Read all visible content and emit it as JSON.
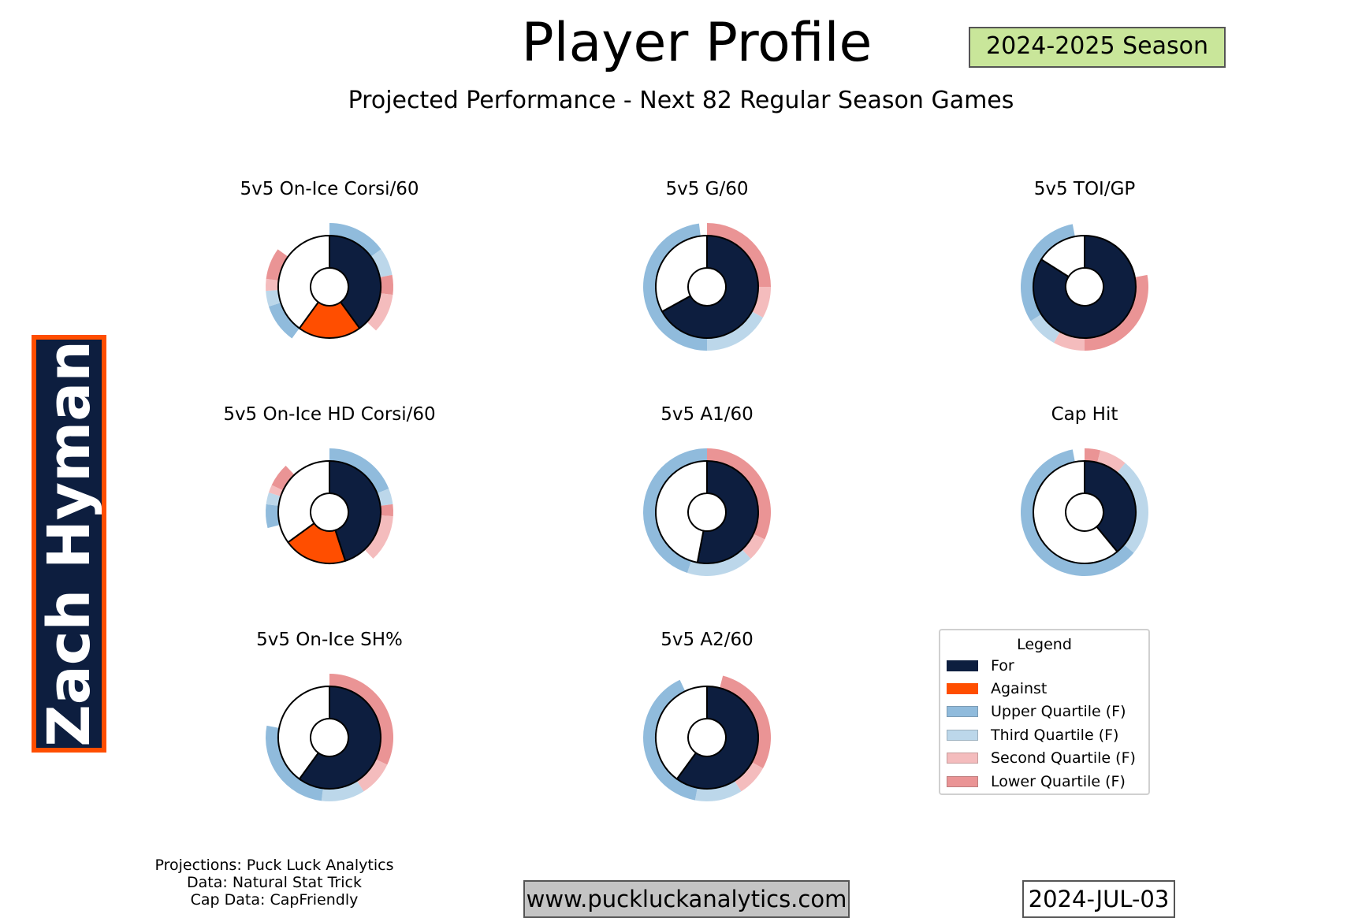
{
  "header": {
    "title": "Player Profile",
    "subtitle": "Projected Performance - Next 82 Regular Season Games",
    "season": "2024-2025 Season"
  },
  "player": {
    "name": "Zach Hyman"
  },
  "colors": {
    "for": "#0d1e3f",
    "against": "#ff4e00",
    "upper_quartile": "#90bbdc",
    "third_quartile": "#bcd7ea",
    "second_quartile": "#f4bcbd",
    "lower_quartile": "#ea9495",
    "remainder": "#ffffff"
  },
  "legend": {
    "title": "Legend",
    "items": [
      {
        "label": "For",
        "color": "#0d1e3f"
      },
      {
        "label": "Against",
        "color": "#ff4e00"
      },
      {
        "label": "Upper Quartile (F)",
        "color": "#90bbdc"
      },
      {
        "label": "Third Quartile (F)",
        "color": "#bcd7ea"
      },
      {
        "label": "Second Quartile (F)",
        "color": "#f4bcbd"
      },
      {
        "label": "Lower Quartile (F)",
        "color": "#ea9495"
      }
    ]
  },
  "chart_data": [
    {
      "type": "pie",
      "title": "5v5 On-Ice Corsi/60",
      "inner": [
        {
          "category": "For",
          "share": 0.4
        },
        {
          "category": "Against",
          "share": 0.2
        },
        {
          "category": "Remainder",
          "share": 0.4
        }
      ],
      "outer": [
        {
          "category": "Upper Quartile (F)",
          "share": 0.15
        },
        {
          "category": "Third Quartile (F)",
          "share": 0.07
        },
        {
          "category": "Lower Quartile (F)",
          "share": 0.05
        },
        {
          "category": "Second Quartile (F)",
          "share": 0.1
        },
        {
          "category": "Gap",
          "share": 0.23
        },
        {
          "category": "Upper Quartile (F)",
          "share": 0.1
        },
        {
          "category": "Third Quartile (F)",
          "share": 0.04
        },
        {
          "category": "Second Quartile (F)",
          "share": 0.03
        },
        {
          "category": "Lower Quartile (F)",
          "share": 0.08
        },
        {
          "category": "Gap",
          "share": 0.15
        }
      ]
    },
    {
      "type": "pie",
      "title": "5v5 G/60",
      "inner": [
        {
          "category": "For",
          "share": 0.67
        },
        {
          "category": "Remainder",
          "share": 0.33
        }
      ],
      "outer": [
        {
          "category": "Lower Quartile (F)",
          "share": 0.25
        },
        {
          "category": "Second Quartile (F)",
          "share": 0.08
        },
        {
          "category": "Third Quartile (F)",
          "share": 0.17
        },
        {
          "category": "Upper Quartile (F)",
          "share": 0.48
        },
        {
          "category": "Gap",
          "share": 0.02
        }
      ]
    },
    {
      "type": "pie",
      "title": "5v5 TOI/GP",
      "inner": [
        {
          "category": "For",
          "share": 0.84
        },
        {
          "category": "Remainder",
          "share": 0.16
        }
      ],
      "outer": [
        {
          "category": "Gap",
          "share": 0.22
        },
        {
          "category": "Lower Quartile (F)",
          "share": 0.28
        },
        {
          "category": "Second Quartile (F)",
          "share": 0.08
        },
        {
          "category": "Third Quartile (F)",
          "share": 0.08
        },
        {
          "category": "Upper Quartile (F)",
          "share": 0.31
        },
        {
          "category": "Gap",
          "share": 0.03
        }
      ]
    },
    {
      "type": "pie",
      "title": "5v5 On-Ice HD Corsi/60",
      "inner": [
        {
          "category": "For",
          "share": 0.45
        },
        {
          "category": "Against",
          "share": 0.2
        },
        {
          "category": "Remainder",
          "share": 0.35
        }
      ],
      "outer": [
        {
          "category": "Upper Quartile (F)",
          "share": 0.19
        },
        {
          "category": "Third Quartile (F)",
          "share": 0.04
        },
        {
          "category": "Lower Quartile (F)",
          "share": 0.03
        },
        {
          "category": "Second Quartile (F)",
          "share": 0.12
        },
        {
          "category": "Gap",
          "share": 0.33
        },
        {
          "category": "Upper Quartile (F)",
          "share": 0.06
        },
        {
          "category": "Third Quartile (F)",
          "share": 0.03
        },
        {
          "category": "Second Quartile (F)",
          "share": 0.02
        },
        {
          "category": "Lower Quartile (F)",
          "share": 0.06
        },
        {
          "category": "Gap",
          "share": 0.12
        }
      ]
    },
    {
      "type": "pie",
      "title": "5v5 A1/60",
      "inner": [
        {
          "category": "For",
          "share": 0.53
        },
        {
          "category": "Remainder",
          "share": 0.47
        }
      ],
      "outer": [
        {
          "category": "Lower Quartile (F)",
          "share": 0.32
        },
        {
          "category": "Second Quartile (F)",
          "share": 0.06
        },
        {
          "category": "Third Quartile (F)",
          "share": 0.17
        },
        {
          "category": "Upper Quartile (F)",
          "share": 0.45
        }
      ]
    },
    {
      "type": "pie",
      "title": "Cap Hit",
      "inner": [
        {
          "category": "For",
          "share": 0.39
        },
        {
          "category": "Remainder",
          "share": 0.61
        }
      ],
      "outer": [
        {
          "category": "Lower Quartile (F)",
          "share": 0.04
        },
        {
          "category": "Second Quartile (F)",
          "share": 0.07
        },
        {
          "category": "Third Quartile (F)",
          "share": 0.25
        },
        {
          "category": "Upper Quartile (F)",
          "share": 0.61
        },
        {
          "category": "Gap",
          "share": 0.03
        }
      ]
    },
    {
      "type": "pie",
      "title": "5v5 On-Ice SH%",
      "inner": [
        {
          "category": "For",
          "share": 0.6
        },
        {
          "category": "Remainder",
          "share": 0.4
        }
      ],
      "outer": [
        {
          "category": "Lower Quartile (F)",
          "share": 0.32
        },
        {
          "category": "Second Quartile (F)",
          "share": 0.09
        },
        {
          "category": "Third Quartile (F)",
          "share": 0.11
        },
        {
          "category": "Upper Quartile (F)",
          "share": 0.26
        },
        {
          "category": "Gap",
          "share": 0.22
        }
      ]
    },
    {
      "type": "pie",
      "title": "5v5 A2/60",
      "inner": [
        {
          "category": "For",
          "share": 0.6
        },
        {
          "category": "Remainder",
          "share": 0.4
        }
      ],
      "outer": [
        {
          "category": "Gap",
          "share": 0.04
        },
        {
          "category": "Lower Quartile (F)",
          "share": 0.29
        },
        {
          "category": "Second Quartile (F)",
          "share": 0.08
        },
        {
          "category": "Third Quartile (F)",
          "share": 0.12
        },
        {
          "category": "Upper Quartile (F)",
          "share": 0.4
        },
        {
          "category": "Gap",
          "share": 0.07
        }
      ]
    }
  ],
  "footer": {
    "credits": [
      "Projections: Puck Luck Analytics",
      "Data: Natural Stat Trick",
      "Cap Data: CapFriendly"
    ],
    "website": "www.puckluckanalytics.com",
    "date": "2024-JUL-03"
  }
}
